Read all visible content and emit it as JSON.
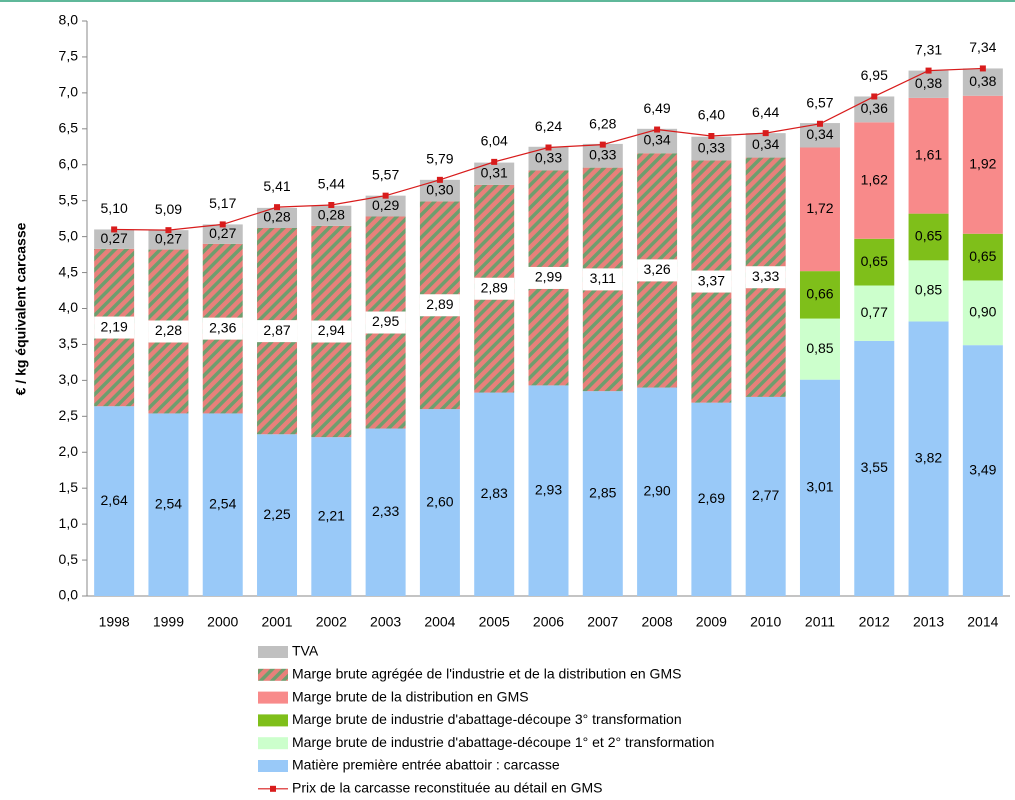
{
  "chart_data": {
    "type": "bar",
    "stacked": true,
    "ylabel": "€ / kg équivalent carcasse",
    "categories": [
      "1998",
      "1999",
      "2000",
      "2001",
      "2002",
      "2003",
      "2004",
      "2005",
      "2006",
      "2007",
      "2008",
      "2009",
      "2010",
      "2011",
      "2012",
      "2013",
      "2014"
    ],
    "ylim": [
      0,
      8
    ],
    "yticks": [
      {
        "value": 0,
        "label": "0,0"
      },
      {
        "value": 0.5,
        "label": "0,5"
      },
      {
        "value": 1,
        "label": "1,0"
      },
      {
        "value": 1.5,
        "label": "1,5"
      },
      {
        "value": 2,
        "label": "2,0"
      },
      {
        "value": 2.5,
        "label": "2,5"
      },
      {
        "value": 3,
        "label": "3,0"
      },
      {
        "value": 3.5,
        "label": "3,5"
      },
      {
        "value": 4,
        "label": "4,0"
      },
      {
        "value": 4.5,
        "label": "4,5"
      },
      {
        "value": 5,
        "label": "5,0"
      },
      {
        "value": 5.5,
        "label": "5,5"
      },
      {
        "value": 6,
        "label": "6,0"
      },
      {
        "value": 6.5,
        "label": "6,5"
      },
      {
        "value": 7,
        "label": "7,0"
      },
      {
        "value": 7.5,
        "label": "7,5"
      },
      {
        "value": 8,
        "label": "8,0"
      }
    ],
    "grid": false,
    "series": [
      {
        "name": "Matière première entrée abattoir : carcasse",
        "color": "#99c9f8",
        "values": [
          2.64,
          2.54,
          2.54,
          2.25,
          2.21,
          2.33,
          2.6,
          2.83,
          2.93,
          2.85,
          2.9,
          2.69,
          2.77,
          3.01,
          3.55,
          3.82,
          3.49
        ],
        "value_labels": [
          "2,64",
          "2,54",
          "2,54",
          "2,25",
          "2,21",
          "2,33",
          "2,60",
          "2,83",
          "2,93",
          "2,85",
          "2,90",
          "2,69",
          "2,77",
          "3,01",
          "3,55",
          "3,82",
          "3,49"
        ]
      },
      {
        "name": "Marge brute de industrie d'abattage-découpe 1° et 2° transformation",
        "color": "#ccffcc",
        "values": [
          null,
          null,
          null,
          null,
          null,
          null,
          null,
          null,
          null,
          null,
          null,
          null,
          null,
          0.85,
          0.77,
          0.85,
          0.9
        ],
        "value_labels": [
          null,
          null,
          null,
          null,
          null,
          null,
          null,
          null,
          null,
          null,
          null,
          null,
          null,
          "0,85",
          "0,77",
          "0,85",
          "0,90"
        ]
      },
      {
        "name": "Marge brute de industrie d'abattage-découpe 3° transformation",
        "color": "#7fbf1a",
        "values": [
          null,
          null,
          null,
          null,
          null,
          null,
          null,
          null,
          null,
          null,
          null,
          null,
          null,
          0.66,
          0.65,
          0.65,
          0.65
        ],
        "value_labels": [
          null,
          null,
          null,
          null,
          null,
          null,
          null,
          null,
          null,
          null,
          null,
          null,
          null,
          "0,66",
          "0,65",
          "0,65",
          "0,65"
        ]
      },
      {
        "name": "Marge brute de la distribution en GMS",
        "color": "#f88a8a",
        "values": [
          null,
          null,
          null,
          null,
          null,
          null,
          null,
          null,
          null,
          null,
          null,
          null,
          null,
          1.72,
          1.62,
          1.61,
          1.92
        ],
        "value_labels": [
          null,
          null,
          null,
          null,
          null,
          null,
          null,
          null,
          null,
          null,
          null,
          null,
          null,
          "1,72",
          "1,62",
          "1,61",
          "1,92"
        ]
      },
      {
        "name": "Marge brute agrégée de l'industrie et de la distribution en GMS",
        "color": "#e8807a",
        "hatch": "#6e9e6e",
        "values": [
          2.19,
          2.28,
          2.36,
          2.87,
          2.94,
          2.95,
          2.89,
          2.89,
          2.99,
          3.11,
          3.26,
          3.37,
          3.33,
          null,
          null,
          null,
          null
        ],
        "value_labels": [
          "2,19",
          "2,28",
          "2,36",
          "2,87",
          "2,94",
          "2,95",
          "2,89",
          "2,89",
          "2,99",
          "3,11",
          "3,26",
          "3,37",
          "3,33",
          null,
          null,
          null,
          null
        ]
      },
      {
        "name": "TVA",
        "color": "#c0c0c0",
        "values": [
          0.27,
          0.27,
          0.27,
          0.28,
          0.28,
          0.29,
          0.3,
          0.31,
          0.33,
          0.33,
          0.34,
          0.33,
          0.34,
          0.34,
          0.36,
          0.38,
          0.38
        ],
        "value_labels": [
          "0,27",
          "0,27",
          "0,27",
          "0,28",
          "0,28",
          "0,29",
          "0,30",
          "0,31",
          "0,33",
          "0,33",
          "0,34",
          "0,33",
          "0,34",
          "0,34",
          "0,36",
          "0,38",
          "0,38"
        ]
      },
      {
        "name": "Prix de la carcasse reconstituée au détail en GMS",
        "color": "#d81c1c",
        "type": "line",
        "values": [
          5.1,
          5.09,
          5.17,
          5.41,
          5.44,
          5.57,
          5.79,
          6.04,
          6.24,
          6.28,
          6.49,
          6.4,
          6.44,
          6.57,
          6.95,
          7.31,
          7.34
        ],
        "value_labels": [
          "5,10",
          "5,09",
          "5,17",
          "5,41",
          "5,44",
          "5,57",
          "5,79",
          "6,04",
          "6,24",
          "6,28",
          "6,49",
          "6,40",
          "6,44",
          "6,57",
          "6,95",
          "7,31",
          "7,34"
        ]
      }
    ]
  }
}
